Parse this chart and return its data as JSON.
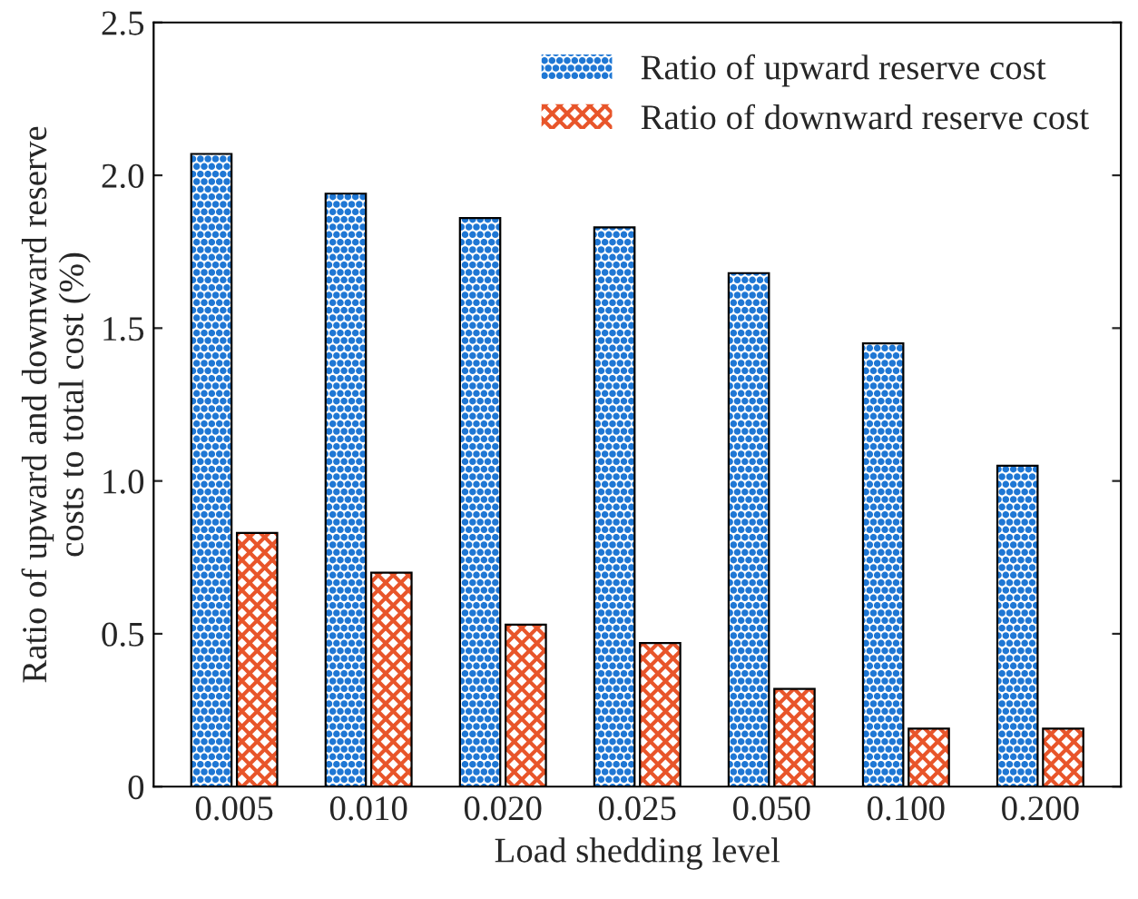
{
  "chart_data": {
    "type": "bar",
    "xlabel": "Load shedding level",
    "ylabel": "Ratio of upward and downward reserve\ncosts to total cost (%)",
    "categories": [
      "0.005",
      "0.010",
      "0.020",
      "0.025",
      "0.050",
      "0.100",
      "0.200"
    ],
    "series": [
      {
        "name": "Ratio of upward reserve cost",
        "color": "#1f77d4",
        "values": [
          2.07,
          1.94,
          1.86,
          1.83,
          1.68,
          1.45,
          1.05
        ]
      },
      {
        "name": "Ratio of downward reserve cost",
        "color": "#e8552a",
        "values": [
          0.83,
          0.7,
          0.53,
          0.47,
          0.32,
          0.19,
          0.19
        ]
      }
    ],
    "ylim": [
      0,
      2.5
    ],
    "yticks": [
      {
        "value": 0,
        "label": "0"
      },
      0.5,
      {
        "value": 1,
        "label": "1.0"
      },
      1.5,
      {
        "value": 2,
        "label": "2.0"
      },
      2.5
    ],
    "legend": "top right",
    "grid": false
  }
}
